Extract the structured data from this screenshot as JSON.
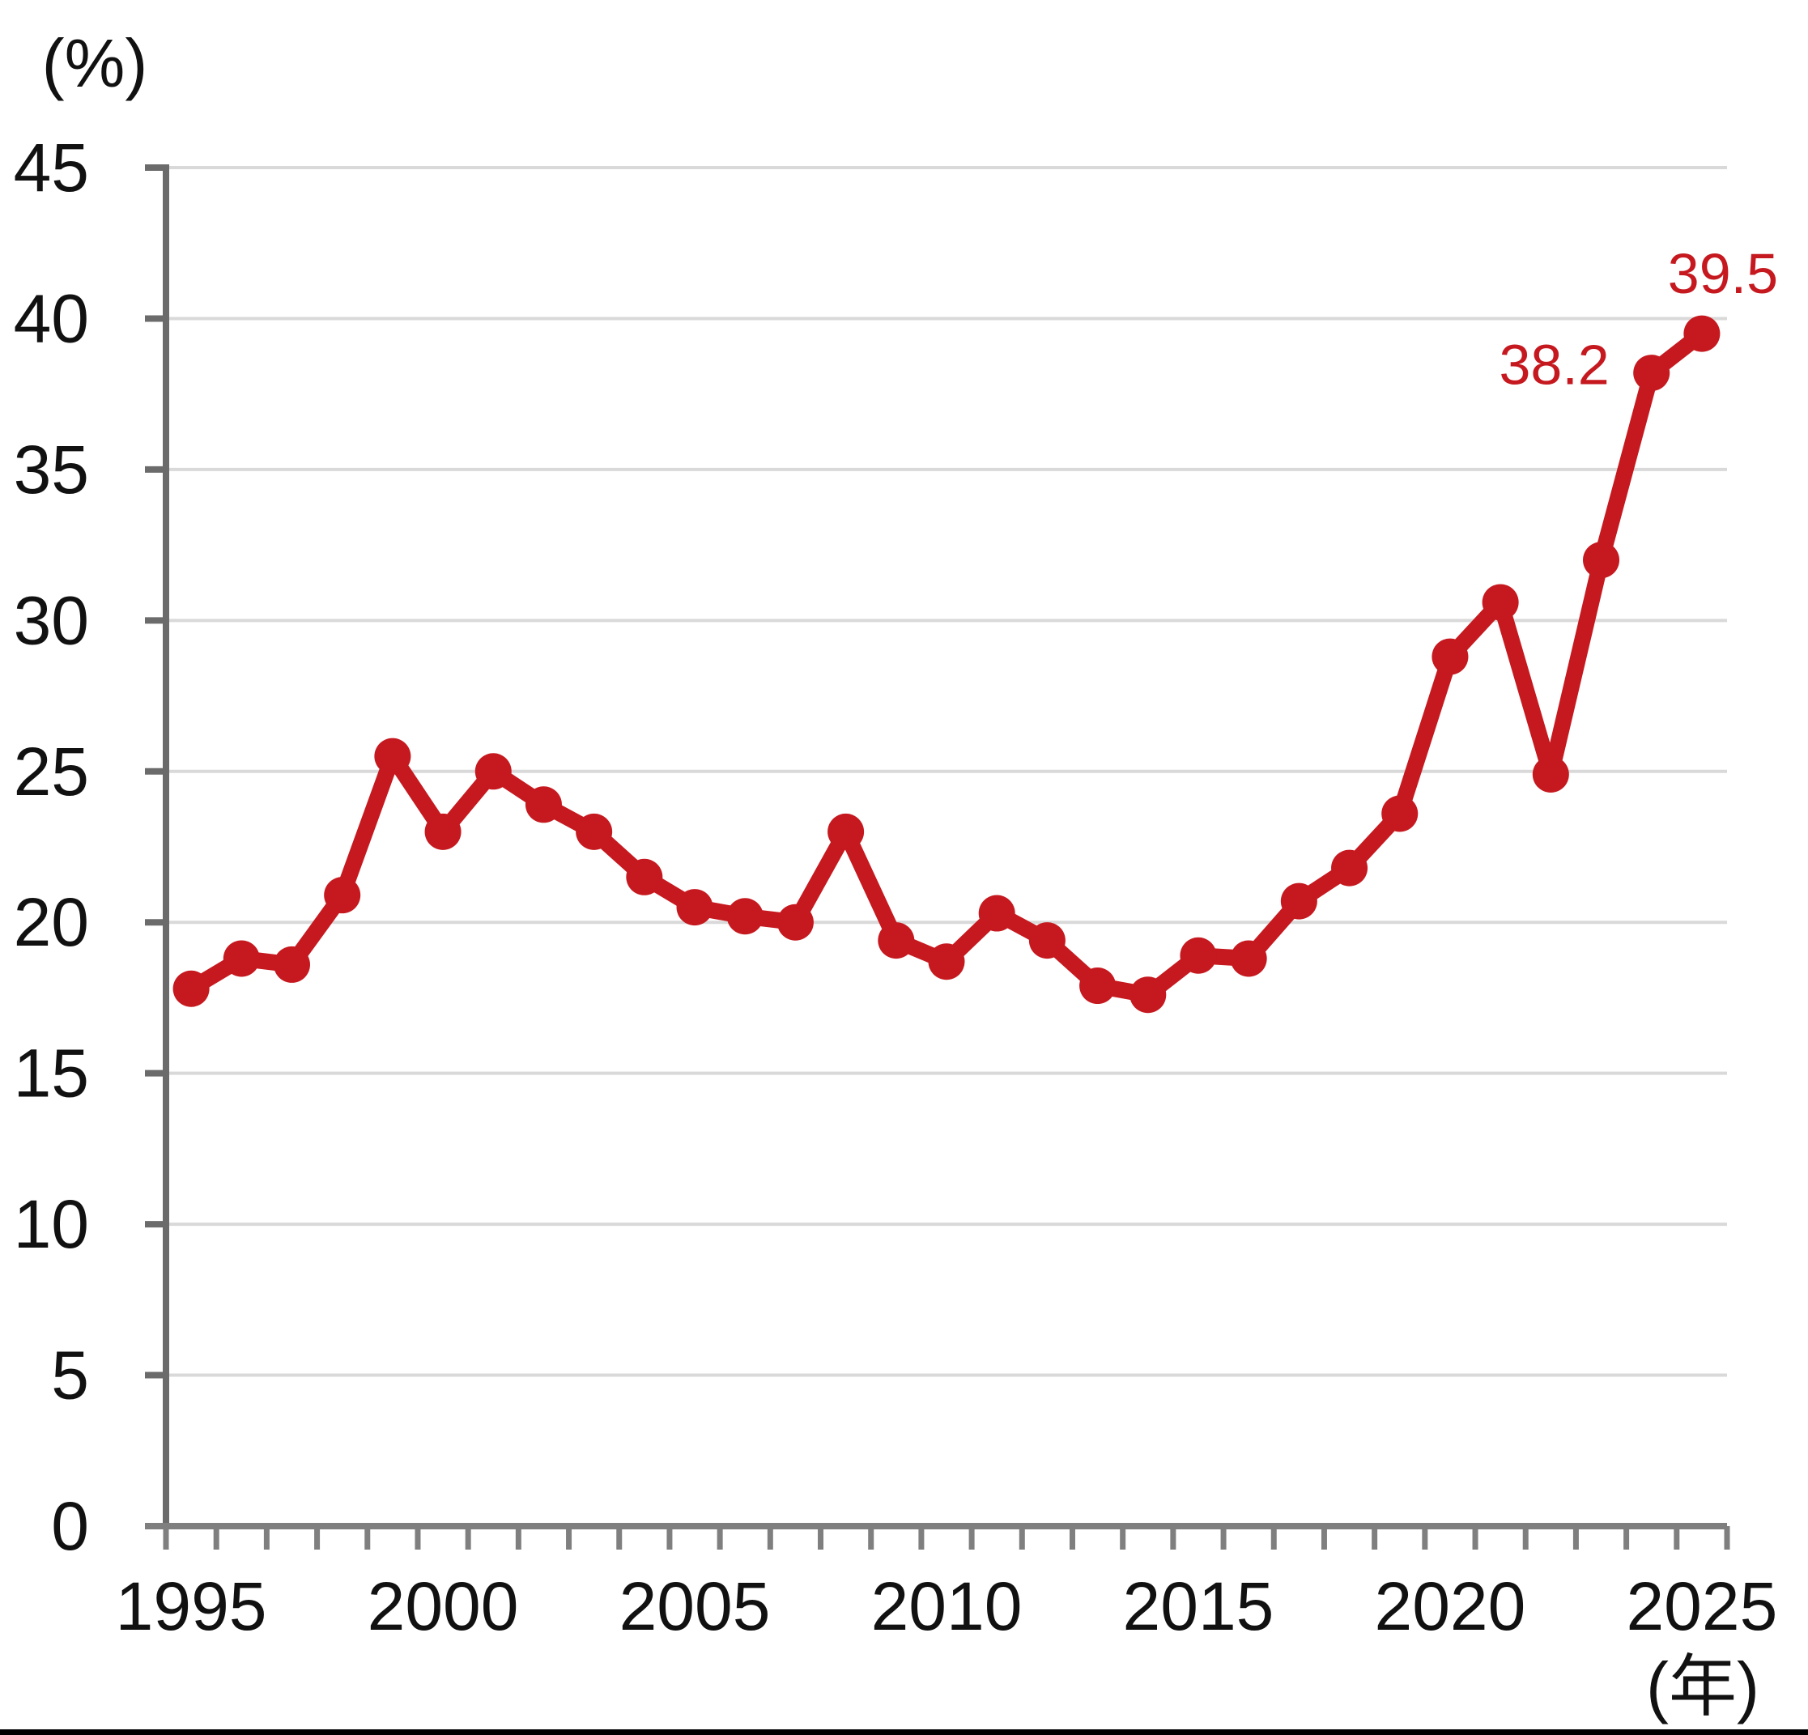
{
  "chart_data": {
    "type": "line",
    "title": "",
    "ylabel_unit": "(%)",
    "xlabel_unit": "(年)",
    "x": [
      1995,
      1996,
      1997,
      1998,
      1999,
      2000,
      2001,
      2002,
      2003,
      2004,
      2005,
      2006,
      2007,
      2008,
      2009,
      2010,
      2011,
      2012,
      2013,
      2014,
      2015,
      2016,
      2017,
      2018,
      2019,
      2020,
      2021,
      2022,
      2023,
      2024,
      2025
    ],
    "values": [
      17.8,
      18.8,
      18.6,
      20.9,
      25.5,
      23.0,
      25.0,
      23.9,
      23.0,
      21.5,
      20.5,
      20.2,
      20.0,
      23.0,
      19.4,
      18.7,
      20.3,
      19.4,
      17.9,
      17.6,
      18.9,
      18.8,
      20.7,
      21.8,
      23.6,
      28.8,
      30.6,
      24.9,
      32.0,
      38.2,
      39.5
    ],
    "ylim": [
      0,
      45
    ],
    "ytick_step": 5,
    "xtick_labels": [
      1995,
      2000,
      2005,
      2010,
      2015,
      2020,
      2025
    ],
    "grid": true,
    "legend_position": "none",
    "annotations": [
      {
        "year": 2024,
        "label": "38.2"
      },
      {
        "year": 2025,
        "label": "39.5"
      }
    ],
    "colors": {
      "line": "#c5191f",
      "annotation": "#c5191f",
      "grid": "#d9d9d9",
      "y_axis": "#6b6b6b",
      "x_axis": "#7f7f7f",
      "text": "#111111",
      "bottom_bar": "#000000"
    }
  }
}
